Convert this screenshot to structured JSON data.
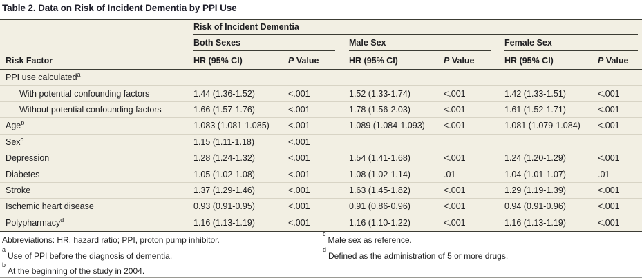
{
  "title": "Table 2. Data on Risk of Incident Dementia by PPI Use",
  "colors": {
    "cream": "#f2efe3",
    "hairline": "#d8d4c5",
    "rule_dark": "#3c3c34",
    "text": "#1d1d20",
    "page_bg": "#ffffff"
  },
  "table": {
    "spanner": "Risk of Incident Dementia",
    "group_headers": {
      "both": "Both Sexes",
      "male": "Male Sex",
      "female": "Female Sex"
    },
    "col_headers": {
      "risk_factor": "Risk Factor",
      "hr": "HR (95% CI)",
      "p_italic": "P",
      "p_rest": "Value"
    },
    "rows": [
      {
        "label": "PPI use calculated",
        "sup": "a",
        "indent": false,
        "values": [
          "",
          "",
          "",
          "",
          "",
          ""
        ]
      },
      {
        "label": "With potential confounding factors",
        "sup": "",
        "indent": true,
        "values": [
          "1.44 (1.36-1.52)",
          "<.001",
          "1.52 (1.33-1.74)",
          "<.001",
          "1.42 (1.33-1.51)",
          "<.001"
        ]
      },
      {
        "label": "Without potential confounding factors",
        "sup": "",
        "indent": true,
        "values": [
          "1.66 (1.57-1.76)",
          "<.001",
          "1.78 (1.56-2.03)",
          "<.001",
          "1.61 (1.52-1.71)",
          "<.001"
        ]
      },
      {
        "label": "Age",
        "sup": "b",
        "indent": false,
        "values": [
          "1.083 (1.081-1.085)",
          "<.001",
          "1.089 (1.084-1.093)",
          "<.001",
          "1.081 (1.079-1.084)",
          "<.001"
        ]
      },
      {
        "label": "Sex",
        "sup": "c",
        "indent": false,
        "values": [
          "1.15 (1.11-1.18)",
          "<.001",
          "",
          "",
          "",
          ""
        ]
      },
      {
        "label": "Depression",
        "sup": "",
        "indent": false,
        "values": [
          "1.28 (1.24-1.32)",
          "<.001",
          "1.54 (1.41-1.68)",
          "<.001",
          "1.24 (1.20-1.29)",
          "<.001"
        ]
      },
      {
        "label": "Diabetes",
        "sup": "",
        "indent": false,
        "values": [
          "1.05 (1.02-1.08)",
          "<.001",
          "1.08 (1.02-1.14)",
          ".01",
          "1.04 (1.01-1.07)",
          ".01"
        ]
      },
      {
        "label": "Stroke",
        "sup": "",
        "indent": false,
        "values": [
          "1.37 (1.29-1.46)",
          "<.001",
          "1.63 (1.45-1.82)",
          "<.001",
          "1.29 (1.19-1.39)",
          "<.001"
        ]
      },
      {
        "label": "Ischemic heart disease",
        "sup": "",
        "indent": false,
        "values": [
          "0.93 (0.91-0.95)",
          "<.001",
          "0.91 (0.86-0.96)",
          "<.001",
          "0.94 (0.91-0.96)",
          "<.001"
        ]
      },
      {
        "label": "Polypharmacy",
        "sup": "d",
        "indent": false,
        "values": [
          "1.16 (1.13-1.19)",
          "<.001",
          "1.16 (1.10-1.22)",
          "<.001",
          "1.16 (1.13-1.19)",
          "<.001"
        ]
      }
    ]
  },
  "footnotes": {
    "left": [
      {
        "sup": "",
        "text": "Abbreviations: HR, hazard ratio; PPI, proton pump inhibitor."
      },
      {
        "sup": "a",
        "text": "Use of PPI before the diagnosis of dementia."
      },
      {
        "sup": "b",
        "text": "At the beginning of the study in 2004."
      }
    ],
    "right": [
      {
        "sup": "c",
        "text": "Male sex as reference."
      },
      {
        "sup": "d",
        "text": "Defined as the administration of 5 or more drugs."
      }
    ]
  }
}
